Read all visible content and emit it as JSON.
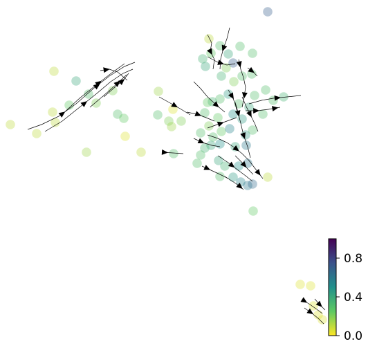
{
  "chart_data": {
    "type": "scatter",
    "title": "",
    "xlabel": "",
    "ylabel": "",
    "axes_visible": false,
    "grid": false,
    "overlay": "velocity-streamlines",
    "xlim": [
      0,
      545
    ],
    "ylim": [
      0,
      513
    ],
    "colormap": [
      "#fde725",
      "#5ec962",
      "#21918c",
      "#3b528b",
      "#440154"
    ],
    "colorbar": {
      "range": [
        0.0,
        1.0
      ],
      "ticks": [
        0.0,
        0.4,
        0.8
      ],
      "tick_labels": [
        "0.0",
        "0.4",
        "0.8"
      ],
      "placement": "bottom-right"
    },
    "points": [
      {
        "x": 387,
        "y": 17,
        "v": 0.7
      },
      {
        "x": 78,
        "y": 103,
        "v": 0.1
      },
      {
        "x": 110,
        "y": 117,
        "v": 0.4
      },
      {
        "x": 128,
        "y": 136,
        "v": 0.3
      },
      {
        "x": 100,
        "y": 152,
        "v": 0.25
      },
      {
        "x": 76,
        "y": 162,
        "v": 0.1
      },
      {
        "x": 80,
        "y": 177,
        "v": 0.1
      },
      {
        "x": 53,
        "y": 193,
        "v": 0.1
      },
      {
        "x": 15,
        "y": 180,
        "v": 0.1
      },
      {
        "x": 163,
        "y": 131,
        "v": 0.2
      },
      {
        "x": 139,
        "y": 149,
        "v": 0.2
      },
      {
        "x": 170,
        "y": 165,
        "v": 0.3
      },
      {
        "x": 179,
        "y": 171,
        "v": 0.25
      },
      {
        "x": 181,
        "y": 197,
        "v": 0.05
      },
      {
        "x": 125,
        "y": 220,
        "v": 0.15
      },
      {
        "x": 204,
        "y": 220,
        "v": 0.1
      },
      {
        "x": 229,
        "y": 132,
        "v": 0.15
      },
      {
        "x": 228,
        "y": 166,
        "v": 0.3
      },
      {
        "x": 250,
        "y": 158,
        "v": 0.05
      },
      {
        "x": 244,
        "y": 175,
        "v": 0.2
      },
      {
        "x": 262,
        "y": 175,
        "v": 0.2
      },
      {
        "x": 248,
        "y": 183,
        "v": 0.15
      },
      {
        "x": 251,
        "y": 222,
        "v": 0.3
      },
      {
        "x": 302,
        "y": 56,
        "v": 0.1
      },
      {
        "x": 318,
        "y": 66,
        "v": 0.3
      },
      {
        "x": 305,
        "y": 77,
        "v": 0.25
      },
      {
        "x": 293,
        "y": 85,
        "v": 0.35
      },
      {
        "x": 330,
        "y": 78,
        "v": 0.4
      },
      {
        "x": 347,
        "y": 67,
        "v": 0.3
      },
      {
        "x": 365,
        "y": 77,
        "v": 0.3
      },
      {
        "x": 297,
        "y": 96,
        "v": 0.4
      },
      {
        "x": 337,
        "y": 91,
        "v": 0.7
      },
      {
        "x": 327,
        "y": 98,
        "v": 0.2
      },
      {
        "x": 320,
        "y": 110,
        "v": 0.35
      },
      {
        "x": 350,
        "y": 110,
        "v": 0.3
      },
      {
        "x": 338,
        "y": 118,
        "v": 0.2
      },
      {
        "x": 364,
        "y": 107,
        "v": 0.3
      },
      {
        "x": 368,
        "y": 138,
        "v": 0.3
      },
      {
        "x": 384,
        "y": 130,
        "v": 0.3
      },
      {
        "x": 330,
        "y": 136,
        "v": 0.45
      },
      {
        "x": 318,
        "y": 143,
        "v": 0.3
      },
      {
        "x": 307,
        "y": 147,
        "v": 0.35
      },
      {
        "x": 300,
        "y": 148,
        "v": 0.25
      },
      {
        "x": 345,
        "y": 150,
        "v": 0.3
      },
      {
        "x": 360,
        "y": 155,
        "v": 0.4
      },
      {
        "x": 395,
        "y": 145,
        "v": 0.3
      },
      {
        "x": 410,
        "y": 140,
        "v": 0.35
      },
      {
        "x": 296,
        "y": 163,
        "v": 0.3
      },
      {
        "x": 315,
        "y": 170,
        "v": 0.25
      },
      {
        "x": 337,
        "y": 165,
        "v": 0.5
      },
      {
        "x": 350,
        "y": 172,
        "v": 0.45
      },
      {
        "x": 380,
        "y": 165,
        "v": 0.3
      },
      {
        "x": 302,
        "y": 182,
        "v": 0.2
      },
      {
        "x": 290,
        "y": 192,
        "v": 0.3
      },
      {
        "x": 308,
        "y": 198,
        "v": 0.3
      },
      {
        "x": 320,
        "y": 190,
        "v": 0.25
      },
      {
        "x": 332,
        "y": 186,
        "v": 0.55
      },
      {
        "x": 355,
        "y": 195,
        "v": 0.45
      },
      {
        "x": 365,
        "y": 188,
        "v": 0.3
      },
      {
        "x": 305,
        "y": 210,
        "v": 0.4
      },
      {
        "x": 296,
        "y": 214,
        "v": 0.35
      },
      {
        "x": 318,
        "y": 208,
        "v": 0.5
      },
      {
        "x": 340,
        "y": 212,
        "v": 0.4
      },
      {
        "x": 356,
        "y": 210,
        "v": 0.6
      },
      {
        "x": 290,
        "y": 224,
        "v": 0.3
      },
      {
        "x": 285,
        "y": 236,
        "v": 0.3
      },
      {
        "x": 316,
        "y": 232,
        "v": 0.4
      },
      {
        "x": 325,
        "y": 240,
        "v": 0.35
      },
      {
        "x": 345,
        "y": 240,
        "v": 0.5
      },
      {
        "x": 358,
        "y": 236,
        "v": 0.6
      },
      {
        "x": 318,
        "y": 255,
        "v": 0.3
      },
      {
        "x": 337,
        "y": 256,
        "v": 0.45
      },
      {
        "x": 348,
        "y": 263,
        "v": 0.55
      },
      {
        "x": 358,
        "y": 268,
        "v": 0.6
      },
      {
        "x": 365,
        "y": 266,
        "v": 0.65
      },
      {
        "x": 387,
        "y": 256,
        "v": 0.1
      },
      {
        "x": 366,
        "y": 305,
        "v": 0.25
      },
      {
        "x": 434,
        "y": 411,
        "v": 0.05
      },
      {
        "x": 449,
        "y": 413,
        "v": 0.05
      },
      {
        "x": 453,
        "y": 442,
        "v": 0.05
      },
      {
        "x": 460,
        "y": 455,
        "v": 0.05
      },
      {
        "x": 466,
        "y": 462,
        "v": 0.05
      }
    ],
    "streamlines": [
      {
        "pts": [
          [
            40,
            187
          ],
          [
            60,
            180
          ],
          [
            85,
            168
          ],
          [
            110,
            150
          ],
          [
            135,
            128
          ],
          [
            158,
            110
          ],
          [
            180,
            96
          ],
          [
            195,
            90
          ]
        ],
        "arrows": [
          [
            0.3,
            0
          ],
          [
            0.65,
            0
          ]
        ]
      },
      {
        "pts": [
          [
            65,
            190
          ],
          [
            90,
            175
          ],
          [
            115,
            155
          ],
          [
            140,
            135
          ],
          [
            160,
            118
          ],
          [
            178,
            106
          ],
          [
            192,
            100
          ]
        ],
        "arrows": [
          [
            0.45,
            0
          ]
        ]
      },
      {
        "pts": [
          [
            90,
            165
          ],
          [
            115,
            142
          ],
          [
            140,
            122
          ],
          [
            162,
            105
          ],
          [
            180,
            92
          ]
        ],
        "arrows": [
          [
            0.6,
            0
          ]
        ]
      },
      {
        "pts": [
          [
            130,
            155
          ],
          [
            150,
            138
          ],
          [
            168,
            122
          ],
          [
            183,
            108
          ]
        ],
        "arrows": [
          [
            0.75,
            0
          ]
        ]
      },
      {
        "pts": [
          [
            150,
            140
          ],
          [
            165,
            127
          ],
          [
            178,
            116
          ],
          [
            186,
            106
          ]
        ],
        "arrows": [
          [
            0.7,
            0
          ]
        ]
      },
      {
        "pts": [
          [
            145,
            102
          ],
          [
            158,
            100
          ],
          [
            170,
            104
          ],
          [
            184,
            116
          ]
        ],
        "arrows": [
          [
            0.2,
            0
          ]
        ]
      },
      {
        "pts": [
          [
            230,
            140
          ],
          [
            248,
            150
          ],
          [
            262,
            158
          ],
          [
            275,
            166
          ]
        ],
        "arrows": [
          [
            0.5,
            0
          ]
        ]
      },
      {
        "pts": [
          [
            235,
            220
          ],
          [
            250,
            221
          ],
          [
            265,
            222
          ]
        ],
        "arrows": [
          [
            0.1,
            0
          ]
        ]
      },
      {
        "pts": [
          [
            300,
            50
          ],
          [
            306,
            62
          ],
          [
            304,
            74
          ],
          [
            310,
            86
          ],
          [
            308,
            100
          ]
        ],
        "arrows": [
          [
            0.5,
            0
          ]
        ]
      },
      {
        "pts": [
          [
            332,
            40
          ],
          [
            328,
            56
          ],
          [
            323,
            70
          ],
          [
            319,
            85
          ],
          [
            318,
            100
          ]
        ],
        "arrows": [
          [
            0.5,
            0
          ]
        ]
      },
      {
        "pts": [
          [
            300,
            82
          ],
          [
            315,
            90
          ],
          [
            328,
            94
          ],
          [
            340,
            92
          ]
        ],
        "arrows": [
          [
            0.5,
            0
          ]
        ]
      },
      {
        "pts": [
          [
            345,
            86
          ],
          [
            348,
            100
          ],
          [
            352,
            112
          ],
          [
            355,
            126
          ],
          [
            353,
            140
          ],
          [
            350,
            155
          ]
        ],
        "arrows": [
          [
            0.1,
            0
          ],
          [
            0.75,
            0
          ]
        ]
      },
      {
        "pts": [
          [
            358,
            98
          ],
          [
            366,
            104
          ],
          [
            372,
            110
          ]
        ],
        "arrows": [
          [
            0.4,
            0
          ]
        ]
      },
      {
        "pts": [
          [
            280,
            118
          ],
          [
            290,
            128
          ],
          [
            300,
            140
          ],
          [
            313,
            152
          ],
          [
            325,
            162
          ]
        ],
        "arrows": [
          [
            0.75,
            0
          ]
        ]
      },
      {
        "pts": [
          [
            330,
            130
          ],
          [
            336,
            140
          ],
          [
            340,
            150
          ],
          [
            343,
            162
          ]
        ],
        "arrows": [
          [
            0.3,
            0
          ]
        ]
      },
      {
        "pts": [
          [
            350,
            140
          ],
          [
            356,
            154
          ],
          [
            362,
            166
          ],
          [
            368,
            178
          ],
          [
            373,
            190
          ]
        ],
        "arrows": [
          [
            0.5,
            0
          ]
        ]
      },
      {
        "pts": [
          [
            340,
            148
          ],
          [
            344,
            162
          ],
          [
            348,
            178
          ],
          [
            352,
            195
          ],
          [
            358,
            212
          ],
          [
            362,
            228
          ]
        ],
        "arrows": [
          [
            0.2,
            0
          ],
          [
            0.6,
            0
          ]
        ]
      },
      {
        "pts": [
          [
            360,
            150
          ],
          [
            378,
            145
          ],
          [
            395,
            142
          ],
          [
            415,
            140
          ],
          [
            435,
            138
          ]
        ],
        "arrows": [
          [
            0.55,
            0
          ]
        ]
      },
      {
        "pts": [
          [
            355,
            160
          ],
          [
            372,
            160
          ],
          [
            388,
            158
          ],
          [
            405,
            155
          ]
        ],
        "arrows": [
          [
            0.3,
            0
          ],
          [
            0.85,
            0
          ]
        ]
      },
      {
        "pts": [
          [
            270,
            162
          ],
          [
            285,
            165
          ],
          [
            298,
            170
          ],
          [
            310,
            175
          ]
        ],
        "arrows": [
          [
            0.4,
            0
          ]
        ]
      },
      {
        "pts": [
          [
            300,
            185
          ],
          [
            314,
            180
          ],
          [
            328,
            175
          ],
          [
            342,
            170
          ]
        ],
        "arrows": [
          [
            0.45,
            0
          ]
        ]
      },
      {
        "pts": [
          [
            280,
            200
          ],
          [
            293,
            206
          ],
          [
            306,
            210
          ],
          [
            318,
            212
          ]
        ],
        "arrows": [
          [
            0.3,
            0
          ]
        ]
      },
      {
        "pts": [
          [
            300,
            195
          ],
          [
            315,
            200
          ],
          [
            328,
            206
          ],
          [
            340,
            214
          ],
          [
            350,
            222
          ],
          [
            360,
            232
          ],
          [
            370,
            245
          ],
          [
            380,
            258
          ]
        ],
        "arrows": [
          [
            0.45,
            0
          ],
          [
            0.9,
            0
          ]
        ]
      },
      {
        "pts": [
          [
            315,
            225
          ],
          [
            330,
            235
          ],
          [
            343,
            245
          ],
          [
            355,
            254
          ],
          [
            365,
            262
          ]
        ],
        "arrows": [
          [
            0.4,
            0
          ]
        ]
      },
      {
        "pts": [
          [
            292,
            240
          ],
          [
            305,
            246
          ],
          [
            318,
            252
          ],
          [
            330,
            258
          ]
        ],
        "arrows": [
          [
            0.2,
            0
          ]
        ]
      },
      {
        "pts": [
          [
            325,
            255
          ],
          [
            336,
            262
          ],
          [
            345,
            268
          ],
          [
            352,
            274
          ]
        ],
        "arrows": [
          [
            0.8,
            0
          ]
        ]
      },
      {
        "pts": [
          [
            340,
            225
          ],
          [
            350,
            235
          ],
          [
            358,
            244
          ],
          [
            366,
            252
          ]
        ],
        "arrows": [
          [
            0.5,
            0
          ]
        ]
      },
      {
        "pts": [
          [
            437,
            433
          ],
          [
            448,
            440
          ],
          [
            458,
            447
          ],
          [
            466,
            453
          ]
        ],
        "arrows": [
          [
            0.1,
            0
          ]
        ]
      },
      {
        "pts": [
          [
            440,
            445
          ],
          [
            450,
            452
          ],
          [
            460,
            460
          ],
          [
            468,
            468
          ]
        ],
        "arrows": [
          [
            0.3,
            0
          ]
        ]
      },
      {
        "pts": [
          [
            455,
            432
          ],
          [
            462,
            440
          ],
          [
            470,
            448
          ]
        ],
        "arrows": [
          [
            0.5,
            0
          ]
        ]
      }
    ]
  }
}
